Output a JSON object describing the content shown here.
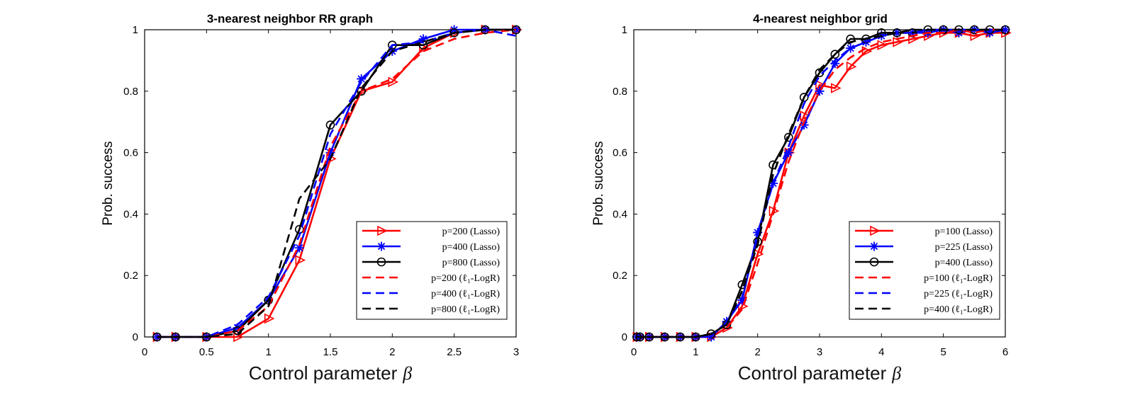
{
  "chart_data": [
    {
      "type": "line",
      "title": "3-nearest neighbor RR graph",
      "xlabel": "Control parameter",
      "xlabel_symbol": "β",
      "ylabel": "Prob. success",
      "xlim": [
        0,
        3
      ],
      "ylim": [
        0,
        1
      ],
      "xticks": [
        0,
        0.5,
        1,
        1.5,
        2,
        2.5,
        3
      ],
      "xtick_labels": [
        "0",
        "0.5",
        "1",
        "1.5",
        "2",
        "2.5",
        "3"
      ],
      "yticks": [
        0,
        0.2,
        0.4,
        0.6,
        0.8,
        1
      ],
      "ytick_labels": [
        "0",
        "0.2",
        "0.4",
        "0.6",
        "0.8",
        "1"
      ],
      "legend_position": "bottom-right",
      "series": [
        {
          "name": "p=200 (Lasso)",
          "color": "#ff0000",
          "style": "solid",
          "marker": "triangle-right",
          "x": [
            0.1,
            0.25,
            0.5,
            0.75,
            1.0,
            1.25,
            1.5,
            1.75,
            2.0,
            2.25,
            2.5,
            2.75,
            3.0
          ],
          "y": [
            0,
            0,
            0,
            0,
            0.06,
            0.25,
            0.58,
            0.8,
            0.83,
            0.94,
            0.99,
            1.0,
            1.0
          ]
        },
        {
          "name": "p=400 (Lasso)",
          "color": "#0000ff",
          "style": "solid",
          "marker": "asterisk",
          "x": [
            0.1,
            0.25,
            0.5,
            0.75,
            1.0,
            1.25,
            1.5,
            1.75,
            2.0,
            2.25,
            2.5,
            2.75,
            3.0
          ],
          "y": [
            0,
            0,
            0,
            0.03,
            0.12,
            0.29,
            0.6,
            0.84,
            0.93,
            0.97,
            1.0,
            1.0,
            1.0
          ]
        },
        {
          "name": "p=800 (Lasso)",
          "color": "#000000",
          "style": "solid",
          "marker": "circle",
          "x": [
            0.1,
            0.25,
            0.5,
            0.75,
            1.0,
            1.25,
            1.5,
            1.75,
            2.0,
            2.25,
            2.5,
            2.75,
            3.0
          ],
          "y": [
            0,
            0,
            0,
            0.02,
            0.12,
            0.35,
            0.69,
            0.8,
            0.95,
            0.95,
            0.99,
            1.0,
            1.0
          ]
        },
        {
          "name": "p=200 (ℓ₁-LogR)",
          "color": "#ff0000",
          "style": "dashed",
          "marker": "none",
          "x": [
            0.1,
            0.25,
            0.5,
            0.75,
            1.0,
            1.25,
            1.5,
            1.75,
            2.0,
            2.25,
            2.5,
            2.75,
            3.0
          ],
          "y": [
            0,
            0,
            0,
            0.02,
            0.1,
            0.3,
            0.62,
            0.8,
            0.84,
            0.93,
            0.97,
            0.99,
            1.0
          ]
        },
        {
          "name": "p=400 (ℓ₁-LogR)",
          "color": "#0000ff",
          "style": "dashed",
          "marker": "none",
          "x": [
            0.1,
            0.25,
            0.5,
            0.75,
            1.0,
            1.25,
            1.5,
            1.75,
            2.0,
            2.25,
            2.5,
            2.75,
            3.0
          ],
          "y": [
            0,
            0,
            0,
            0.04,
            0.13,
            0.33,
            0.66,
            0.83,
            0.95,
            0.96,
            0.99,
            1.0,
            0.98
          ]
        },
        {
          "name": "p=800 (ℓ₁-LogR)",
          "color": "#000000",
          "style": "dashed",
          "marker": "none",
          "x": [
            0.1,
            0.25,
            0.5,
            0.75,
            1.0,
            1.25,
            1.5,
            1.75,
            2.0,
            2.25,
            2.5,
            2.75,
            3.0
          ],
          "y": [
            0,
            0,
            0,
            0.01,
            0.1,
            0.45,
            0.58,
            0.81,
            0.93,
            0.96,
            0.99,
            1.0,
            1.0
          ]
        }
      ]
    },
    {
      "type": "line",
      "title": "4-nearest neighbor grid",
      "xlabel": "Control parameter",
      "xlabel_symbol": "β",
      "ylabel": "Prob. success",
      "xlim": [
        0,
        6
      ],
      "ylim": [
        0,
        1
      ],
      "xticks": [
        0,
        1,
        2,
        3,
        4,
        5,
        6
      ],
      "xtick_labels": [
        "0",
        "1",
        "2",
        "3",
        "4",
        "5",
        "6"
      ],
      "yticks": [
        0,
        0.2,
        0.4,
        0.6,
        0.8,
        1
      ],
      "ytick_labels": [
        "0",
        "0.2",
        "0.4",
        "0.6",
        "0.8",
        "1"
      ],
      "legend_position": "bottom-right",
      "series": [
        {
          "name": "p=100 (Lasso)",
          "color": "#ff0000",
          "style": "solid",
          "marker": "triangle-right",
          "x": [
            0.05,
            0.1,
            0.25,
            0.5,
            0.75,
            1.0,
            1.25,
            1.5,
            1.75,
            2.0,
            2.25,
            2.5,
            2.75,
            3.0,
            3.25,
            3.5,
            3.75,
            4.0,
            4.25,
            4.5,
            4.75,
            5.0,
            5.25,
            5.5,
            5.75,
            6.0
          ],
          "y": [
            0,
            0,
            0,
            0,
            0,
            0,
            0,
            0.03,
            0.1,
            0.27,
            0.41,
            0.6,
            0.72,
            0.82,
            0.81,
            0.88,
            0.93,
            0.95,
            0.96,
            0.97,
            0.98,
            0.99,
            0.99,
            0.98,
            0.99,
            0.99
          ]
        },
        {
          "name": "p=225 (Lasso)",
          "color": "#0000ff",
          "style": "solid",
          "marker": "asterisk",
          "x": [
            0.05,
            0.1,
            0.25,
            0.5,
            0.75,
            1.0,
            1.25,
            1.5,
            1.75,
            2.0,
            2.25,
            2.5,
            2.75,
            3.0,
            3.25,
            3.5,
            3.75,
            4.0,
            4.25,
            4.5,
            4.75,
            5.0,
            5.25,
            5.5,
            5.75,
            6.0
          ],
          "y": [
            0,
            0,
            0,
            0,
            0,
            0,
            0,
            0.05,
            0.12,
            0.34,
            0.5,
            0.6,
            0.69,
            0.8,
            0.89,
            0.94,
            0.96,
            0.98,
            0.99,
            0.99,
            0.99,
            1.0,
            0.99,
            1.0,
            0.99,
            1.0
          ]
        },
        {
          "name": "p=400 (Lasso)",
          "color": "#000000",
          "style": "solid",
          "marker": "circle",
          "x": [
            0.05,
            0.1,
            0.25,
            0.5,
            0.75,
            1.0,
            1.25,
            1.5,
            1.75,
            2.0,
            2.25,
            2.5,
            2.75,
            3.0,
            3.25,
            3.5,
            3.75,
            4.0,
            4.25,
            4.5,
            4.75,
            5.0,
            5.25,
            5.5,
            5.75,
            6.0
          ],
          "y": [
            0,
            0,
            0,
            0,
            0,
            0,
            0.01,
            0.04,
            0.17,
            0.31,
            0.56,
            0.65,
            0.78,
            0.86,
            0.92,
            0.97,
            0.97,
            0.99,
            0.99,
            0.99,
            1.0,
            1.0,
            1.0,
            1.0,
            1.0,
            1.0
          ]
        },
        {
          "name": "p=100 (ℓ₁-LogR)",
          "color": "#ff0000",
          "style": "dashed",
          "marker": "none",
          "x": [
            0.05,
            0.1,
            0.25,
            0.5,
            0.75,
            1.0,
            1.25,
            1.5,
            1.75,
            2.0,
            2.25,
            2.5,
            2.75,
            3.0,
            3.25,
            3.5,
            3.75,
            4.0,
            4.25,
            4.5,
            4.75,
            5.0,
            5.25,
            5.5,
            5.75,
            6.0
          ],
          "y": [
            0,
            0,
            0,
            0,
            0,
            0,
            0,
            0.03,
            0.09,
            0.24,
            0.4,
            0.57,
            0.7,
            0.8,
            0.87,
            0.91,
            0.94,
            0.96,
            0.97,
            0.98,
            0.99,
            0.99,
            1.0,
            0.99,
            1.0,
            1.0
          ]
        },
        {
          "name": "p=225 (ℓ₁-LogR)",
          "color": "#0000ff",
          "style": "dashed",
          "marker": "none",
          "x": [
            0.05,
            0.1,
            0.25,
            0.5,
            0.75,
            1.0,
            1.25,
            1.5,
            1.75,
            2.0,
            2.25,
            2.5,
            2.75,
            3.0,
            3.25,
            3.5,
            3.75,
            4.0,
            4.25,
            4.5,
            4.75,
            5.0,
            5.25,
            5.5,
            5.75,
            6.0
          ],
          "y": [
            0,
            0,
            0,
            0,
            0,
            0,
            0,
            0.05,
            0.13,
            0.33,
            0.5,
            0.62,
            0.76,
            0.85,
            0.9,
            0.94,
            0.96,
            0.98,
            0.99,
            0.99,
            1.0,
            1.0,
            1.0,
            1.0,
            1.0,
            1.0
          ]
        },
        {
          "name": "p=400 (ℓ₁-LogR)",
          "color": "#000000",
          "style": "dashed",
          "marker": "none",
          "x": [
            0.05,
            0.1,
            0.25,
            0.5,
            0.75,
            1.0,
            1.25,
            1.5,
            1.75,
            2.0,
            2.25,
            2.5,
            2.75,
            3.0,
            3.25,
            3.5,
            3.75,
            4.0,
            4.25,
            4.5,
            4.75,
            5.0,
            5.25,
            5.5,
            5.75,
            6.0
          ],
          "y": [
            0,
            0,
            0,
            0,
            0,
            0,
            0.01,
            0.04,
            0.15,
            0.3,
            0.53,
            0.66,
            0.78,
            0.87,
            0.92,
            0.96,
            0.97,
            0.98,
            0.99,
            1.0,
            1.0,
            1.0,
            1.0,
            1.0,
            1.0,
            1.0
          ]
        }
      ]
    }
  ]
}
